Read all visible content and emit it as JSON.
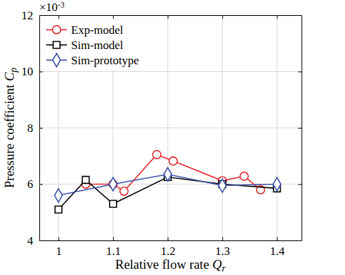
{
  "chart_data": {
    "type": "line",
    "xlabel": "Relative flow rate Qr",
    "ylabel": "Pressure coefficient Cp",
    "annotations": [
      {
        "text": "×10",
        "superscript": "-3"
      }
    ],
    "xlim": [
      0.965,
      1.445
    ],
    "xticks": [
      1,
      1.1,
      1.2,
      1.3,
      1.4
    ],
    "ylim": [
      4,
      12
    ],
    "yticks": [
      4,
      6,
      8,
      10,
      12
    ],
    "grid": true,
    "legend": "upper left",
    "series": [
      {
        "name": "Exp-model",
        "color": "#e0262b",
        "marker": "circle",
        "line_style": "solid",
        "x": [
          1.05,
          1.1,
          1.12,
          1.18,
          1.21,
          1.3,
          1.34,
          1.37
        ],
        "values": [
          6.0,
          6.0,
          5.75,
          7.05,
          6.82,
          6.12,
          6.28,
          5.8
        ]
      },
      {
        "name": "Sim-model",
        "color": "#000000",
        "marker": "square",
        "line_style": "solid",
        "x": [
          1.0,
          1.05,
          1.1,
          1.2,
          1.3,
          1.4
        ],
        "values": [
          5.1,
          6.15,
          5.3,
          6.25,
          6.0,
          5.85
        ]
      },
      {
        "name": "Sim-prototype",
        "color": "#3b4fa8",
        "marker": "diamond",
        "line_style": "solid",
        "x": [
          1.0,
          1.1,
          1.2,
          1.3,
          1.4
        ],
        "values": [
          5.6,
          6.0,
          6.35,
          5.95,
          6.0
        ]
      }
    ]
  }
}
